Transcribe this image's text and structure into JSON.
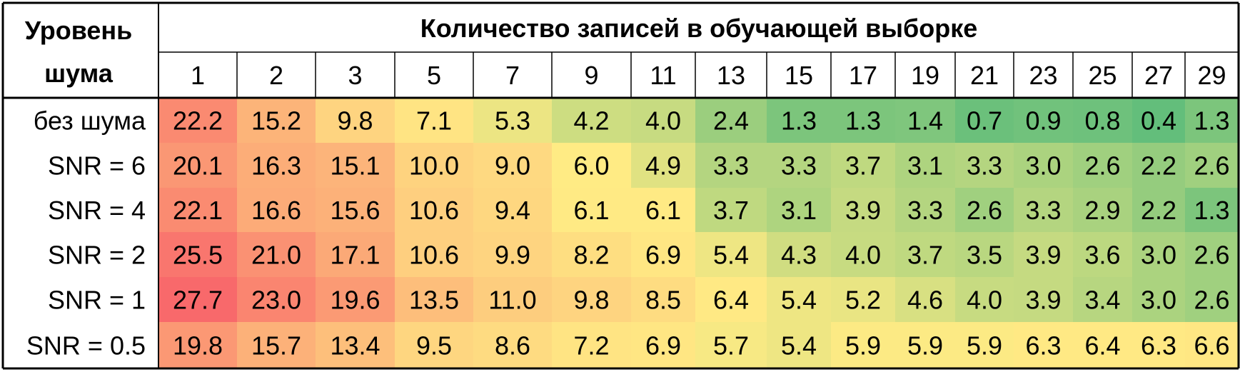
{
  "chart_data": {
    "type": "heatmap",
    "row_header": [
      "Уровень",
      "шума"
    ],
    "col_header": "Количество записей в обучающей выборке",
    "columns": [
      "1",
      "2",
      "3",
      "5",
      "7",
      "9",
      "11",
      "13",
      "15",
      "17",
      "19",
      "21",
      "23",
      "25",
      "27",
      "29"
    ],
    "rows": [
      "без шума",
      "SNR = 6",
      "SNR = 4",
      "SNR = 2",
      "SNR = 1",
      "SNR = 0.5"
    ],
    "values": [
      [
        22.2,
        15.2,
        9.8,
        7.1,
        5.3,
        4.2,
        4.0,
        2.4,
        1.3,
        1.3,
        1.4,
        0.7,
        0.9,
        0.8,
        0.4,
        1.3
      ],
      [
        20.1,
        16.3,
        15.1,
        10.0,
        9.0,
        6.0,
        4.9,
        3.3,
        3.3,
        3.7,
        3.1,
        3.3,
        3.0,
        2.6,
        2.2,
        2.6
      ],
      [
        22.1,
        16.6,
        15.6,
        10.6,
        9.4,
        6.1,
        6.1,
        3.7,
        3.1,
        3.9,
        3.3,
        2.6,
        3.3,
        2.9,
        2.2,
        1.3
      ],
      [
        25.5,
        21.0,
        17.1,
        10.6,
        9.9,
        8.2,
        6.9,
        5.4,
        4.3,
        4.0,
        3.7,
        3.5,
        3.9,
        3.6,
        3.0,
        2.6
      ],
      [
        27.7,
        23.0,
        19.6,
        13.5,
        11.0,
        9.8,
        8.5,
        6.4,
        5.4,
        5.2,
        4.6,
        4.0,
        3.9,
        3.4,
        3.0,
        2.6
      ],
      [
        19.8,
        15.7,
        13.4,
        9.5,
        8.6,
        7.2,
        6.9,
        5.7,
        5.4,
        5.9,
        5.9,
        5.9,
        6.3,
        6.4,
        6.3,
        6.6
      ]
    ],
    "color_scale": {
      "low": "#63be7b",
      "mid": "#ffeb84",
      "high": "#f8696b",
      "mid_value": 6.0
    }
  }
}
